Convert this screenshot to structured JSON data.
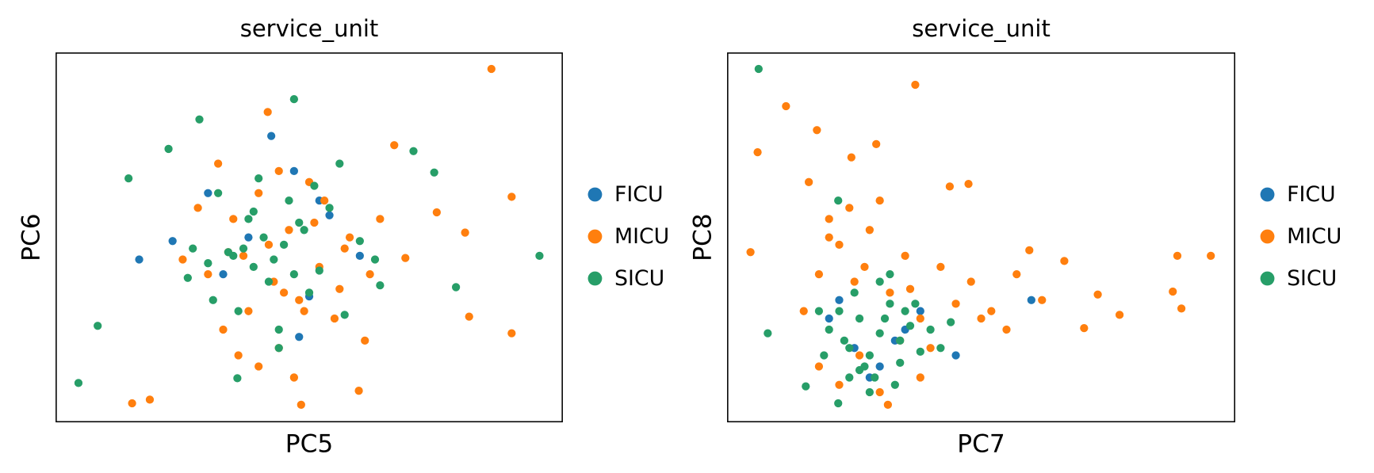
{
  "chart_data": [
    {
      "type": "scatter",
      "title": "service_unit",
      "x_label": "PC5",
      "y_label": "PC6",
      "xlim": [
        0,
        100
      ],
      "ylim": [
        0,
        100
      ],
      "series": [
        {
          "name": "FICU",
          "color": "#1f77b4",
          "x": [
            16.4,
            42.5,
            23,
            30,
            47,
            50,
            38,
            54,
            60,
            33,
            48,
            52
          ],
          "values": [
            44,
            77.5,
            49,
            62,
            68,
            34,
            50,
            56,
            45,
            40,
            23,
            60
          ]
        },
        {
          "name": "MICU",
          "color": "#ff7f0e",
          "x": [
            86,
            90,
            15,
            18.5,
            90,
            81.6,
            41.8,
            66.8,
            75.2,
            80.8,
            48.4,
            59.8,
            69,
            30,
            35,
            38,
            40,
            42,
            44,
            45,
            46,
            50,
            52,
            55,
            58,
            28,
            33,
            37,
            43,
            48,
            53,
            57,
            61,
            64,
            25,
            32,
            36,
            47,
            51,
            56,
            62,
            40,
            44,
            49,
            34
          ],
          "values": [
            95.7,
            61,
            5,
            6,
            24,
            28.5,
            84,
            75,
            56.8,
            51.3,
            4.6,
            8.4,
            44.4,
            40,
            55,
            30,
            62,
            48,
            20,
            35,
            52,
            65,
            42,
            28,
            50,
            58,
            25,
            45,
            38,
            33,
            60,
            47,
            22,
            55,
            44,
            70,
            18,
            12,
            54,
            36,
            40,
            15,
            68,
            30,
            46
          ]
        },
        {
          "name": "SICU",
          "color": "#279e68",
          "x": [
            95.5,
            4.4,
            8.2,
            14.3,
            47,
            28.3,
            22.2,
            70.6,
            74.7,
            79,
            35.8,
            35,
            37,
            39,
            41,
            43,
            45,
            47,
            49,
            34,
            38,
            42,
            46,
            50,
            54,
            30,
            27,
            32,
            36,
            40,
            44,
            48,
            52,
            56,
            60,
            64,
            26,
            31,
            39,
            44,
            51,
            57,
            63
          ],
          "values": [
            45,
            10.5,
            26,
            66,
            87.5,
            82,
            74,
            73.4,
            67.6,
            36.5,
            11.8,
            45,
            47,
            42,
            50,
            44,
            48,
            40,
            52,
            46,
            55,
            38,
            60,
            35,
            58,
            43,
            47,
            62,
            30,
            66,
            25,
            54,
            41,
            70,
            49,
            37,
            39,
            33,
            57,
            20,
            64,
            29,
            44
          ]
        }
      ]
    },
    {
      "type": "scatter",
      "title": "service_unit",
      "x_label": "PC7",
      "y_label": "PC8",
      "xlim": [
        0,
        100
      ],
      "ylim": [
        0,
        100
      ],
      "series": [
        {
          "name": "FICU",
          "color": "#1f77b4",
          "x": [
            59.9,
            22,
            25,
            30,
            35,
            28,
            45,
            20,
            33,
            38
          ],
          "values": [
            33,
            33,
            20,
            15,
            25,
            12,
            18,
            28,
            22,
            30
          ]
        },
        {
          "name": "MICU",
          "color": "#ff7f0e",
          "x": [
            37,
            11.5,
            5.9,
            17.6,
            4.5,
            88.7,
            95.3,
            87.8,
            89.5,
            77.3,
            73,
            66.4,
            59.5,
            47.5,
            43.8,
            29.3,
            24.4,
            70.3,
            31.6,
            15,
            18,
            20,
            22,
            25,
            28,
            30,
            32,
            35,
            38,
            40,
            42,
            45,
            48,
            52,
            55,
            18,
            22,
            26,
            30,
            34,
            38,
            16,
            24,
            20,
            27,
            36,
            50,
            62,
            57
          ],
          "values": [
            91.4,
            85.6,
            73.1,
            79.1,
            46,
            45,
            45,
            35.3,
            30.7,
            29,
            34.5,
            43.6,
            46.5,
            64.5,
            63.8,
            75.3,
            71.7,
            25.4,
            4.6,
            30,
            40,
            55,
            48,
            38,
            52,
            60,
            35,
            45,
            28,
            20,
            42,
            32,
            38,
            30,
            25,
            15,
            10,
            18,
            8,
            22,
            12,
            65,
            58,
            50,
            42,
            36,
            28,
            33,
            40
          ]
        },
        {
          "name": "SICU",
          "color": "#279e68",
          "x": [
            6.1,
            7.9,
            15.4,
            21.8,
            21.8,
            20,
            22,
            24,
            26,
            28,
            30,
            32,
            34,
            36,
            38,
            25,
            27,
            29,
            31,
            33,
            35,
            23,
            19,
            40,
            42,
            30,
            28,
            26,
            34,
            37,
            44,
            18,
            24,
            32
          ],
          "values": [
            95.7,
            24,
            9.6,
            5,
            60,
            25,
            30,
            20,
            28,
            18,
            24,
            32,
            22,
            26,
            19,
            35,
            15,
            12,
            28,
            10,
            30,
            22,
            18,
            25,
            20,
            38,
            8,
            14,
            16,
            32,
            27,
            30,
            12,
            40
          ]
        }
      ]
    }
  ]
}
